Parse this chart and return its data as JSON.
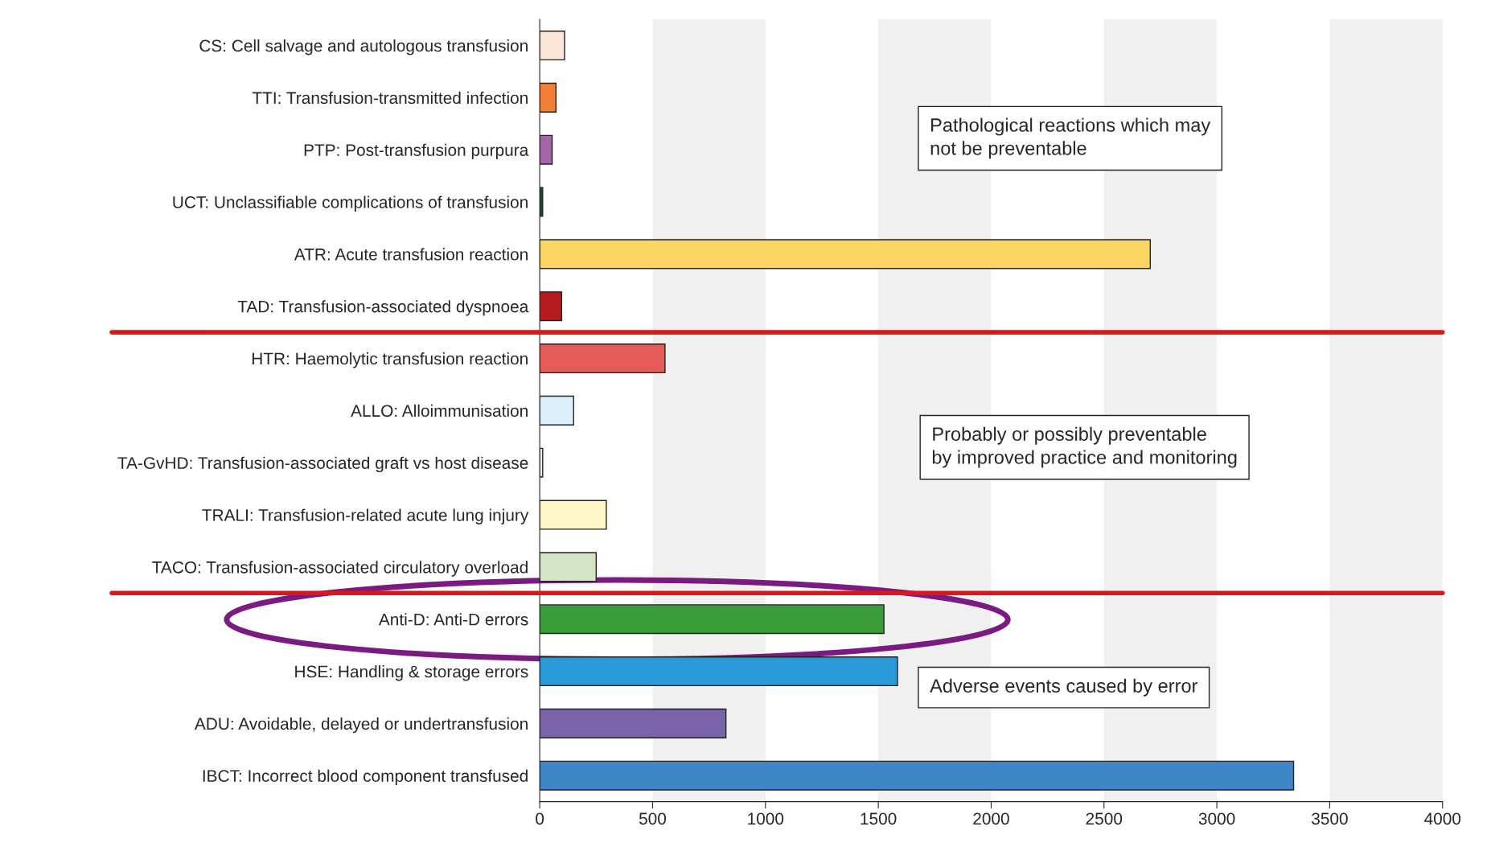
{
  "chart_data": {
    "type": "bar",
    "orientation": "horizontal",
    "categories": [
      "CS: Cell salvage and autologous transfusion",
      "TTI: Transfusion-transmitted infection",
      "PTP: Post-transfusion purpura",
      "UCT: Unclassifiable complications of transfusion",
      "ATR: Acute transfusion reaction",
      "TAD: Transfusion-associated dyspnoea",
      "HTR: Haemolytic transfusion reaction",
      "ALLO: Alloimmunisation",
      "TA-GvHD: Transfusion-associated graft vs host disease",
      "TRALI: Transfusion-related acute lung injury",
      "TACO: Transfusion-associated circulatory overload",
      "Anti-D: Anti-D errors",
      "HSE: Handling & storage errors",
      "ADU: Avoidable, delayed or undertransfusion",
      "IBCT: Incorrect blood component transfused"
    ],
    "values": [
      110,
      72,
      55,
      13,
      2705,
      97,
      555,
      150,
      13,
      295,
      250,
      1525,
      1585,
      825,
      3340
    ],
    "colors": [
      "#fde6d8",
      "#f07f35",
      "#a466a8",
      "#1a4d2e",
      "#fdd563",
      "#b51a1c",
      "#e45a57",
      "#dbeefb",
      "#f5f5f5",
      "#fdf7c8",
      "#d4e4c5",
      "#3a9d3a",
      "#2a9ad8",
      "#7a63a8",
      "#3f86c7"
    ],
    "xlim": [
      0,
      4000
    ],
    "xticks": [
      0,
      500,
      1000,
      1500,
      2000,
      2500,
      3000,
      3500,
      4000
    ],
    "annotations": [
      "Pathological reactions which may\nnot be preventable",
      "Probably or possibly preventable\nby improved practice and monitoring",
      "Adverse events caused by error"
    ],
    "grid": false,
    "legend": false
  }
}
